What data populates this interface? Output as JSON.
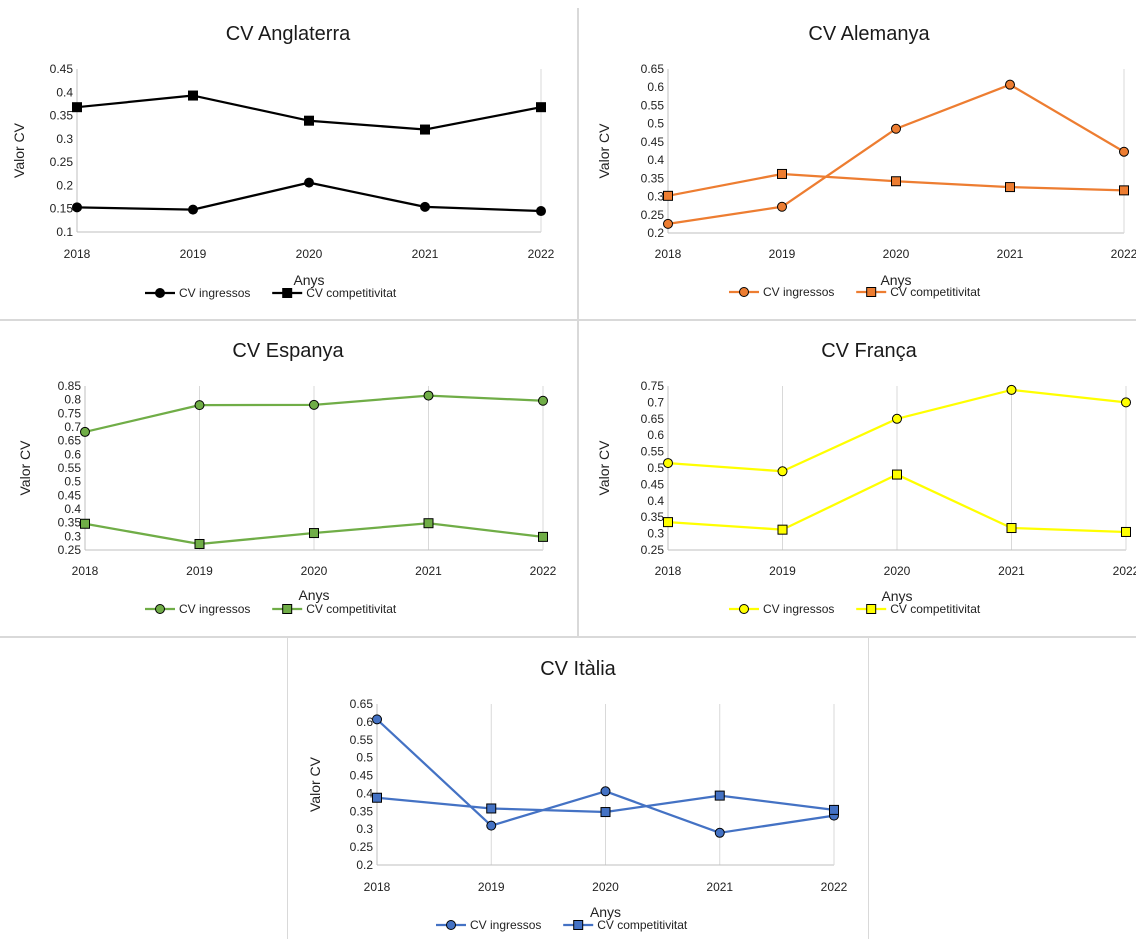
{
  "chart_data": [
    {
      "type": "line",
      "title": "CV Anglaterra",
      "xlabel": "Anys",
      "ylabel": "Valor CV",
      "x": [
        "2018",
        "2019",
        "2020",
        "2021",
        "2022"
      ],
      "ylim": [
        0.1,
        0.45
      ],
      "yticks": [
        "0.1",
        "0.15",
        "0.2",
        "0.25",
        "0.3",
        "0.35",
        "0.4",
        "0.45"
      ],
      "grid": "off",
      "legend": "bottom",
      "color": "#000000",
      "marker_fill": "#000000",
      "series": [
        {
          "name": "CV ingressos",
          "marker": "circle",
          "values": [
            0.153,
            0.148,
            0.206,
            0.154,
            0.145
          ]
        },
        {
          "name": "CV competitivitat",
          "marker": "square",
          "values": [
            0.368,
            0.393,
            0.339,
            0.32,
            0.368
          ]
        }
      ]
    },
    {
      "type": "line",
      "title": "CV Alemanya",
      "xlabel": "Anys",
      "ylabel": "Valor CV",
      "x": [
        "2018",
        "2019",
        "2020",
        "2021",
        "2022"
      ],
      "ylim": [
        0.2,
        0.65
      ],
      "yticks": [
        "0.2",
        "0.25",
        "0.3",
        "0.35",
        "0.4",
        "0.45",
        "0.5",
        "0.55",
        "0.6",
        "0.65"
      ],
      "grid": "off",
      "legend": "bottom",
      "color": "#ed7d31",
      "marker_fill": "#ed7d31",
      "series": [
        {
          "name": "CV ingressos",
          "marker": "circle",
          "values": [
            0.225,
            0.272,
            0.486,
            0.607,
            0.423
          ]
        },
        {
          "name": "CV competitivitat",
          "marker": "square",
          "values": [
            0.302,
            0.362,
            0.342,
            0.326,
            0.317
          ]
        }
      ]
    },
    {
      "type": "line",
      "title": "CV Espanya",
      "xlabel": "Anys",
      "ylabel": "Valor CV",
      "x": [
        "2018",
        "2019",
        "2020",
        "2021",
        "2022"
      ],
      "ylim": [
        0.25,
        0.85
      ],
      "yticks": [
        "0.25",
        "0.3",
        "0.35",
        "0.4",
        "0.45",
        "0.5",
        "0.55",
        "0.6",
        "0.65",
        "0.7",
        "0.75",
        "0.8",
        "0.85"
      ],
      "grid": "vertical",
      "legend": "bottom",
      "color": "#70ad47",
      "marker_fill": "#70ad47",
      "series": [
        {
          "name": "CV ingressos",
          "marker": "circle",
          "values": [
            0.682,
            0.78,
            0.781,
            0.815,
            0.796
          ]
        },
        {
          "name": "CV competitivitat",
          "marker": "square",
          "values": [
            0.346,
            0.272,
            0.312,
            0.348,
            0.298
          ]
        }
      ]
    },
    {
      "type": "line",
      "title": "CV França",
      "xlabel": "Anys",
      "ylabel": "Valor CV",
      "x": [
        "2018",
        "2019",
        "2020",
        "2021",
        "2022"
      ],
      "ylim": [
        0.25,
        0.75
      ],
      "yticks": [
        "0.25",
        "0.3",
        "0.35",
        "0.4",
        "0.45",
        "0.5",
        "0.55",
        "0.6",
        "0.65",
        "0.7",
        "0.75"
      ],
      "grid": "vertical",
      "legend": "bottom",
      "color": "#ffff00",
      "marker_fill": "#ffff00",
      "series": [
        {
          "name": "CV ingressos",
          "marker": "circle",
          "values": [
            0.515,
            0.49,
            0.65,
            0.738,
            0.7
          ]
        },
        {
          "name": "CV competitivitat",
          "marker": "square",
          "values": [
            0.335,
            0.312,
            0.48,
            0.317,
            0.305
          ]
        }
      ]
    },
    {
      "type": "line",
      "title": "CV Itàlia",
      "xlabel": "Anys",
      "ylabel": "Valor CV",
      "x": [
        "2018",
        "2019",
        "2020",
        "2021",
        "2022"
      ],
      "ylim": [
        0.2,
        0.65
      ],
      "yticks": [
        "0.2",
        "0.25",
        "0.3",
        "0.35",
        "0.4",
        "0.45",
        "0.5",
        "0.55",
        "0.6",
        "0.65"
      ],
      "grid": "vertical",
      "legend": "bottom",
      "color": "#4472c4",
      "marker_fill": "#4472c4",
      "series": [
        {
          "name": "CV ingressos",
          "marker": "circle",
          "values": [
            0.607,
            0.31,
            0.406,
            0.29,
            0.338
          ]
        },
        {
          "name": "CV competitivitat",
          "marker": "square",
          "values": [
            0.388,
            0.358,
            0.348,
            0.394,
            0.354
          ]
        }
      ]
    }
  ]
}
